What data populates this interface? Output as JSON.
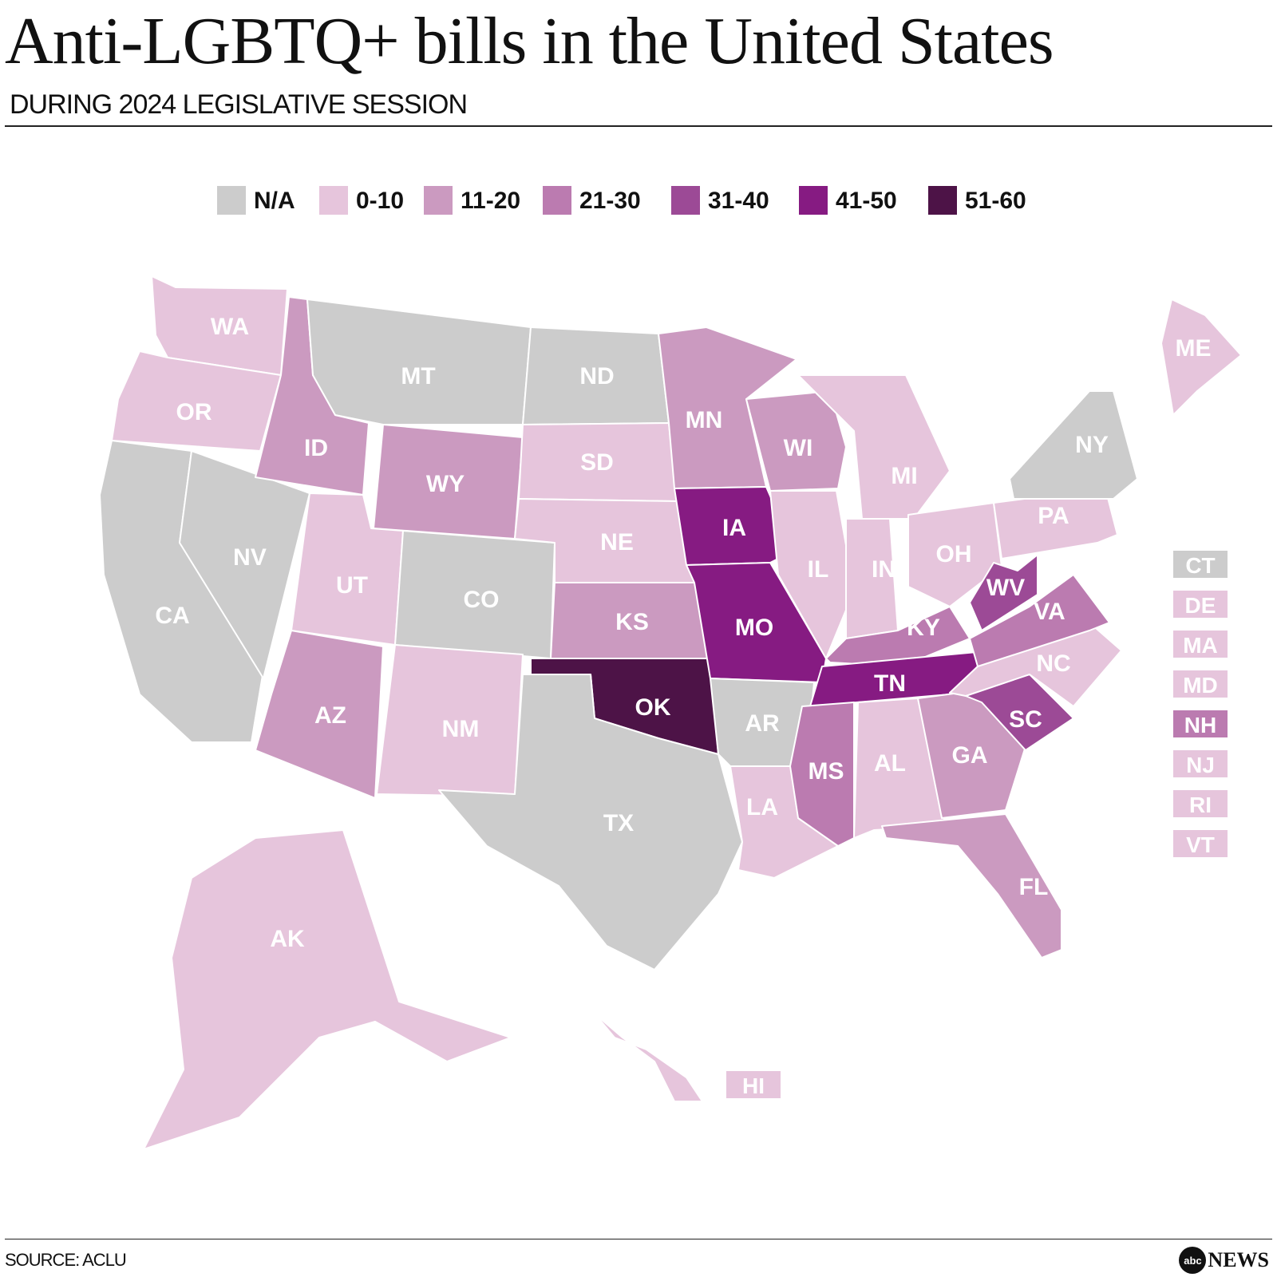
{
  "header": {
    "title": "Anti-LGBTQ+ bills in the United States",
    "subtitle": "DURING 2024 LEGISLATIVE SESSION"
  },
  "legend": {
    "items": [
      {
        "label": "N/A",
        "color": "#cccccc"
      },
      {
        "label": "0-10",
        "color": "#e6c5dc"
      },
      {
        "label": "11-20",
        "color": "#cb9ac0"
      },
      {
        "label": "21-30",
        "color": "#bb7bb0"
      },
      {
        "label": "31-40",
        "color": "#9c4a96"
      },
      {
        "label": "41-50",
        "color": "#861b82"
      },
      {
        "label": "51-60",
        "color": "#4d1347"
      }
    ]
  },
  "states": [
    {
      "abbr": "WA",
      "bin": 1
    },
    {
      "abbr": "OR",
      "bin": 1
    },
    {
      "abbr": "CA",
      "bin": 0
    },
    {
      "abbr": "NV",
      "bin": 0
    },
    {
      "abbr": "ID",
      "bin": 2
    },
    {
      "abbr": "MT",
      "bin": 0
    },
    {
      "abbr": "WY",
      "bin": 2
    },
    {
      "abbr": "UT",
      "bin": 1
    },
    {
      "abbr": "AZ",
      "bin": 2
    },
    {
      "abbr": "CO",
      "bin": 0
    },
    {
      "abbr": "NM",
      "bin": 1
    },
    {
      "abbr": "ND",
      "bin": 0
    },
    {
      "abbr": "SD",
      "bin": 1
    },
    {
      "abbr": "NE",
      "bin": 1
    },
    {
      "abbr": "KS",
      "bin": 2
    },
    {
      "abbr": "OK",
      "bin": 6
    },
    {
      "abbr": "TX",
      "bin": 0
    },
    {
      "abbr": "MN",
      "bin": 2
    },
    {
      "abbr": "IA",
      "bin": 5
    },
    {
      "abbr": "MO",
      "bin": 5
    },
    {
      "abbr": "AR",
      "bin": 0
    },
    {
      "abbr": "LA",
      "bin": 1
    },
    {
      "abbr": "WI",
      "bin": 2
    },
    {
      "abbr": "IL",
      "bin": 1
    },
    {
      "abbr": "MI",
      "bin": 1
    },
    {
      "abbr": "IN",
      "bin": 1
    },
    {
      "abbr": "OH",
      "bin": 1
    },
    {
      "abbr": "KY",
      "bin": 3
    },
    {
      "abbr": "TN",
      "bin": 5
    },
    {
      "abbr": "MS",
      "bin": 3
    },
    {
      "abbr": "AL",
      "bin": 1
    },
    {
      "abbr": "GA",
      "bin": 2
    },
    {
      "abbr": "FL",
      "bin": 2
    },
    {
      "abbr": "SC",
      "bin": 4
    },
    {
      "abbr": "NC",
      "bin": 1
    },
    {
      "abbr": "VA",
      "bin": 3
    },
    {
      "abbr": "WV",
      "bin": 4
    },
    {
      "abbr": "PA",
      "bin": 1
    },
    {
      "abbr": "NY",
      "bin": 0
    },
    {
      "abbr": "ME",
      "bin": 1
    },
    {
      "abbr": "AK",
      "bin": 1
    },
    {
      "abbr": "HI",
      "bin": 1
    }
  ],
  "small_states": [
    {
      "abbr": "CT",
      "bin": 0
    },
    {
      "abbr": "DE",
      "bin": 1
    },
    {
      "abbr": "MA",
      "bin": 1
    },
    {
      "abbr": "MD",
      "bin": 1
    },
    {
      "abbr": "NH",
      "bin": 3
    },
    {
      "abbr": "NJ",
      "bin": 1
    },
    {
      "abbr": "RI",
      "bin": 1
    },
    {
      "abbr": "VT",
      "bin": 1
    }
  ],
  "footer": {
    "source": "SOURCE: ACLU",
    "brand_mark": "abc",
    "brand_word": "NEWS"
  }
}
